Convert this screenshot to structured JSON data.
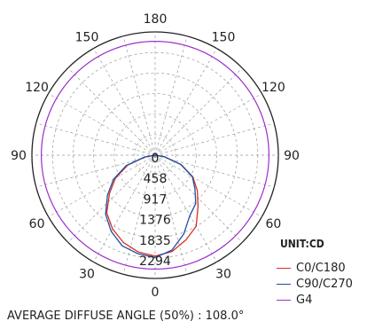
{
  "chart_data": {
    "type": "polar",
    "title": "",
    "angle_labels": [
      {
        "angle": 180,
        "label": "180"
      },
      {
        "angle": 150,
        "label": "150"
      },
      {
        "angle": 120,
        "label": "120"
      },
      {
        "angle": 90,
        "label": "90"
      },
      {
        "angle": 60,
        "label": "60"
      },
      {
        "angle": 30,
        "label": "30"
      },
      {
        "angle": 0,
        "label": "0"
      },
      {
        "angle": -30,
        "label": "30"
      },
      {
        "angle": -60,
        "label": "60"
      },
      {
        "angle": -90,
        "label": "90"
      },
      {
        "angle": -120,
        "label": "120"
      },
      {
        "angle": -150,
        "label": "150"
      }
    ],
    "radial_ticks": [
      0,
      458,
      917,
      1376,
      1835,
      2294
    ],
    "radial_max": 2294,
    "unit": "UNIT:CD",
    "grid": true,
    "series": [
      {
        "name": "C0/C180",
        "color": "#d93025",
        "angles": [
          0,
          10,
          20,
          30,
          40,
          50,
          60,
          70,
          80,
          90,
          100,
          110,
          120,
          130,
          140,
          150,
          160,
          170,
          180
        ],
        "right": [
          2250,
          2180,
          2010,
          1830,
          1490,
          1230,
          970,
          620,
          220,
          0,
          0,
          0,
          0,
          0,
          0,
          0,
          0,
          0,
          0
        ],
        "left": [
          2250,
          2190,
          2070,
          1900,
          1680,
          1330,
          1020,
          650,
          230,
          0,
          0,
          0,
          0,
          0,
          0,
          0,
          0,
          0,
          0
        ]
      },
      {
        "name": "C90/C270",
        "color": "#1f4ea8",
        "angles": [
          0,
          10,
          20,
          30,
          40,
          50,
          60,
          70,
          80,
          90,
          100,
          110,
          120,
          130,
          140,
          150,
          160,
          170,
          180
        ],
        "right": [
          2280,
          2150,
          1870,
          1550,
          1410,
          1160,
          960,
          610,
          210,
          0,
          0,
          0,
          0,
          0,
          0,
          0,
          0,
          0,
          0
        ],
        "left": [
          2280,
          2230,
          2150,
          1960,
          1720,
          1390,
          1070,
          690,
          240,
          0,
          0,
          0,
          0,
          0,
          0,
          0,
          0,
          0,
          0
        ]
      },
      {
        "name": "G4",
        "color": "#9b30c8",
        "angles": [
          0,
          30,
          60,
          90,
          120,
          150,
          180
        ],
        "right": [
          2540,
          2540,
          2540,
          2540,
          2540,
          2540,
          2540
        ],
        "left": [
          2540,
          2540,
          2540,
          2540,
          2540,
          2540,
          2540
        ]
      }
    ],
    "annotation": "AVERAGE DIFFUSE ANGLE (50%) : 108.0°"
  }
}
